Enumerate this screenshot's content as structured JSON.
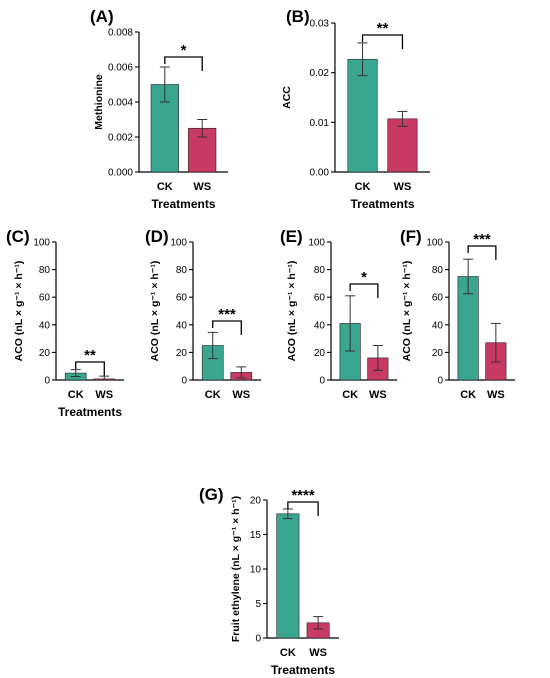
{
  "colors": {
    "CK": "#3aa68f",
    "WS": "#c83a62"
  },
  "chart_data": [
    {
      "type": "bar",
      "panel_label": "(A)",
      "title": "",
      "ylabel": "Methionine",
      "xlabel": "Treatments",
      "categories": [
        "CK",
        "WS"
      ],
      "values": [
        0.005,
        0.0025
      ],
      "errors": [
        0.001,
        0.0005
      ],
      "ylim": [
        0,
        0.008
      ],
      "ticks": [
        "0.000",
        "0.002",
        "0.004",
        "0.006",
        "0.008"
      ],
      "significance": "*"
    },
    {
      "type": "bar",
      "panel_label": "(B)",
      "title": "",
      "ylabel": "ACC",
      "xlabel": "Treatments",
      "categories": [
        "CK",
        "WS"
      ],
      "values": [
        0.0227,
        0.0107
      ],
      "errors": [
        0.0033,
        0.0015
      ],
      "ylim": [
        0,
        0.03
      ],
      "ticks": [
        "0.00",
        "0.01",
        "0.02",
        "0.03"
      ],
      "significance": "**"
    },
    {
      "type": "bar",
      "panel_label": "(C)",
      "title": "",
      "ylabel": "ACO (nL × g⁻¹ × h⁻¹)",
      "xlabel": "Treatments",
      "categories": [
        "CK",
        "WS"
      ],
      "values": [
        5,
        0.8
      ],
      "errors": [
        2.5,
        2
      ],
      "ylim": [
        0,
        100
      ],
      "ticks": [
        "0",
        "20",
        "40",
        "60",
        "80",
        "100"
      ],
      "significance": "**"
    },
    {
      "type": "bar",
      "panel_label": "(D)",
      "title": "",
      "ylabel": "ACO (nL × g⁻¹ × h⁻¹)",
      "xlabel": "",
      "categories": [
        "CK",
        "WS"
      ],
      "values": [
        25,
        5.5
      ],
      "errors": [
        9.5,
        4
      ],
      "ylim": [
        0,
        100
      ],
      "ticks": [
        "0",
        "20",
        "40",
        "60",
        "80",
        "100"
      ],
      "significance": "***"
    },
    {
      "type": "bar",
      "panel_label": "(E)",
      "title": "",
      "ylabel": "ACO (nL × g⁻¹ × h⁻¹)",
      "xlabel": "",
      "categories": [
        "CK",
        "WS"
      ],
      "values": [
        41,
        16
      ],
      "errors": [
        20,
        9
      ],
      "ylim": [
        0,
        100
      ],
      "ticks": [
        "0",
        "20",
        "40",
        "60",
        "80",
        "100"
      ],
      "significance": "*"
    },
    {
      "type": "bar",
      "panel_label": "(F)",
      "title": "",
      "ylabel": "ACO (nL × g⁻¹ × h⁻¹)",
      "xlabel": "",
      "categories": [
        "CK",
        "WS"
      ],
      "values": [
        75,
        27
      ],
      "errors": [
        12.5,
        14
      ],
      "ylim": [
        0,
        100
      ],
      "ticks": [
        "0",
        "20",
        "40",
        "60",
        "80",
        "100"
      ],
      "significance": "***"
    },
    {
      "type": "bar",
      "panel_label": "(G)",
      "title": "",
      "ylabel": "Fruit ethylene (nL × g⁻¹ × h⁻¹)",
      "xlabel": "Treatments",
      "categories": [
        "CK",
        "WS"
      ],
      "values": [
        18,
        2.2
      ],
      "errors": [
        0.7,
        0.9
      ],
      "ylim": [
        0,
        20
      ],
      "ticks": [
        "0",
        "5",
        "10",
        "15",
        "20"
      ],
      "significance": "****"
    }
  ]
}
